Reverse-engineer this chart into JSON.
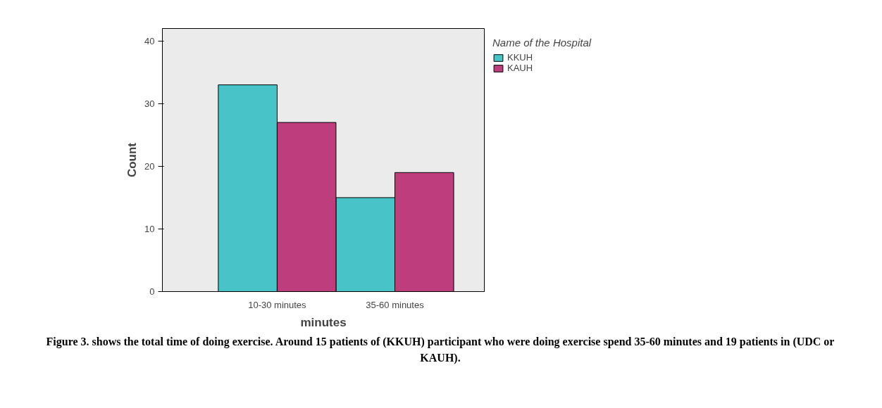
{
  "chart_data": {
    "type": "bar",
    "categories": [
      "10-30 minutes",
      "35-60 minutes"
    ],
    "series": [
      {
        "name": "KKUH",
        "color": "#48c3c8",
        "values": [
          33,
          15
        ]
      },
      {
        "name": "KAUH",
        "color": "#bd3d7d",
        "values": [
          27,
          19
        ]
      }
    ],
    "xlabel": "minutes",
    "ylabel": "Count",
    "legend_title": "Name of the Hospital",
    "ylim": [
      0,
      42
    ],
    "yticks": [
      0,
      10,
      20,
      30,
      40
    ],
    "grid": false,
    "legend": "top right",
    "annotations": [
      "Figure 3. shows the total time of doing exercise. Around 15 patients of (KKUH) participant who were doing exercise spend 35-60 minutes and 19 patients in (UDC or KAUH)."
    ]
  }
}
